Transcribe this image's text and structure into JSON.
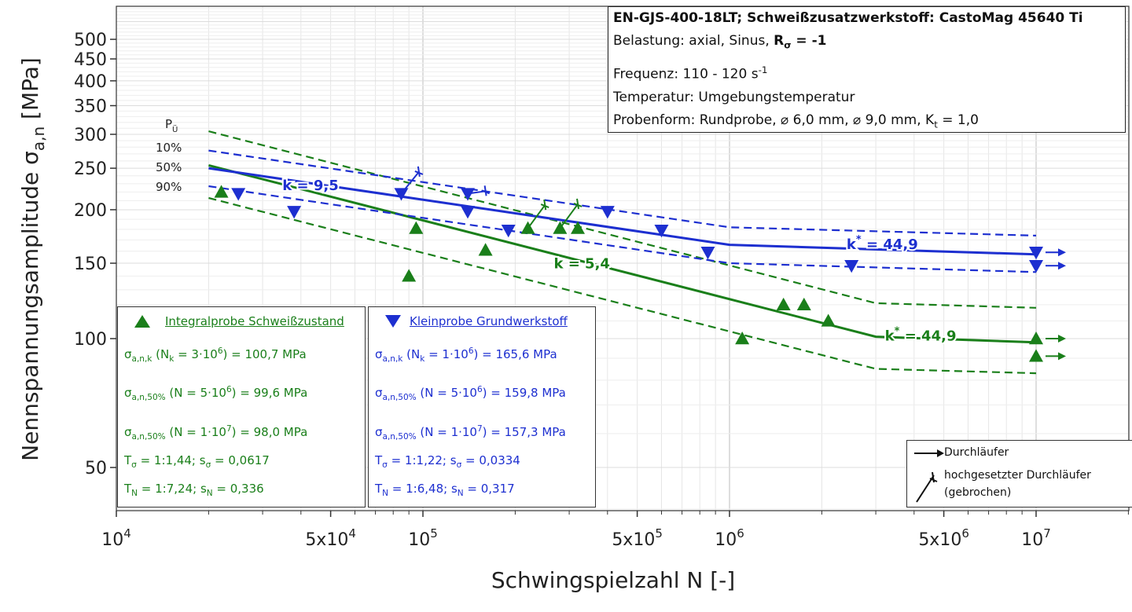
{
  "chart_data": {
    "type": "scatter",
    "x_scale": "log",
    "y_scale": "log",
    "xlim": [
      10000,
      20000000
    ],
    "ylim": [
      40,
      600
    ],
    "grid": true,
    "xlabel": "Schwingspielzahl N  [-]",
    "ylabel_main": "Nennspannungsamplitude σ",
    "ylabel_sub": "a,n",
    "ylabel_unit": " [MPa]",
    "x_ticks": [
      {
        "value": 10000,
        "base": "10",
        "exp": "4"
      },
      {
        "value": 50000,
        "base": "5x10",
        "exp": "4"
      },
      {
        "value": 100000,
        "base": "10",
        "exp": "5"
      },
      {
        "value": 500000,
        "base": "5x10",
        "exp": "5"
      },
      {
        "value": 1000000,
        "base": "10",
        "exp": "6"
      },
      {
        "value": 5000000,
        "base": "5x10",
        "exp": "6"
      },
      {
        "value": 10000000,
        "base": "10",
        "exp": "7"
      }
    ],
    "y_ticks": [
      {
        "value": 500,
        "label": "500"
      },
      {
        "value": 450,
        "label": "450"
      },
      {
        "value": 400,
        "label": "400"
      },
      {
        "value": 350,
        "label": "350"
      },
      {
        "value": 300,
        "label": "300"
      },
      {
        "value": 250,
        "label": "250"
      },
      {
        "value": 200,
        "label": "200"
      },
      {
        "value": 150,
        "label": "150"
      },
      {
        "value": 100,
        "label": "100"
      },
      {
        "value": 50,
        "label": "50"
      }
    ],
    "pu_labels": {
      "title": "P",
      "title_sub": "Ü",
      "p10": "10%",
      "p50": "50%",
      "p90": "90%"
    },
    "series": [
      {
        "name": "Integralprobe Schweißzustand",
        "color": "#1a7f1a",
        "marker": "triangle-up",
        "points": [
          {
            "x": 22000,
            "y": 220
          },
          {
            "x": 90000,
            "y": 140
          },
          {
            "x": 95000,
            "y": 181
          },
          {
            "x": 160000,
            "y": 161
          },
          {
            "x": 220000,
            "y": 181
          },
          {
            "x": 280000,
            "y": 181
          },
          {
            "x": 320000,
            "y": 181
          },
          {
            "x": 1100000,
            "y": 100
          },
          {
            "x": 1500000,
            "y": 120
          },
          {
            "x": 1750000,
            "y": 120
          },
          {
            "x": 2100000,
            "y": 110
          },
          {
            "x": 10000000,
            "y": 100,
            "runout": true
          },
          {
            "x": 10000000,
            "y": 91,
            "runout": true
          }
        ],
        "raised_runouts": [
          {
            "x": 220000,
            "y": 181,
            "x2": 250000,
            "y2": 205
          },
          {
            "x": 280000,
            "y": 181,
            "x2": 320000,
            "y2": 206
          }
        ],
        "curve_50": [
          [
            20000,
            254
          ],
          [
            3000000,
            101
          ],
          [
            10000000,
            98
          ]
        ],
        "curve_10": [
          [
            20000,
            305
          ],
          [
            3000000,
            121
          ],
          [
            10000000,
            118
          ]
        ],
        "curve_90": [
          [
            20000,
            213
          ],
          [
            3000000,
            85
          ],
          [
            10000000,
            83
          ]
        ],
        "slope_label": "k = 5,4",
        "slope_label_at": [
          330000,
          146
        ],
        "knee_label": "k",
        "knee_label_sup": "*",
        "knee_label_rest": " = 44,9",
        "knee_label_at": [
          4200000,
          99
        ]
      },
      {
        "name": "Kleinprobe Grundwerkstoff",
        "color": "#1d2fd0",
        "marker": "triangle-down",
        "points": [
          {
            "x": 25000,
            "y": 218
          },
          {
            "x": 38000,
            "y": 198
          },
          {
            "x": 85000,
            "y": 218
          },
          {
            "x": 140000,
            "y": 218
          },
          {
            "x": 140000,
            "y": 198
          },
          {
            "x": 190000,
            "y": 179
          },
          {
            "x": 400000,
            "y": 198
          },
          {
            "x": 600000,
            "y": 179
          },
          {
            "x": 850000,
            "y": 159
          },
          {
            "x": 2500000,
            "y": 148
          },
          {
            "x": 10000000,
            "y": 159,
            "runout": true
          },
          {
            "x": 10000000,
            "y": 148,
            "runout": true
          }
        ],
        "raised_runouts": [
          {
            "x": 85000,
            "y": 218,
            "x2": 97000,
            "y2": 245
          },
          {
            "x": 140000,
            "y": 218,
            "x2": 160000,
            "y2": 221
          }
        ],
        "curve_50": [
          [
            20000,
            250
          ],
          [
            1000000,
            165.6
          ],
          [
            10000000,
            157.3
          ]
        ],
        "curve_10": [
          [
            20000,
            275
          ],
          [
            1000000,
            182
          ],
          [
            10000000,
            174
          ]
        ],
        "curve_90": [
          [
            20000,
            227
          ],
          [
            1000000,
            150
          ],
          [
            10000000,
            143
          ]
        ],
        "slope_label": "k = 9,5",
        "slope_label_at": [
          43000,
          222
        ],
        "knee_label": "k",
        "knee_label_sup": "*",
        "knee_label_rest": " = 44,9",
        "knee_label_at": [
          3150000,
          162
        ]
      }
    ]
  },
  "info": {
    "line1": "EN-GJS-400-18LT; Schweißzusatzwerkstoff: CastoMag 45640 Ti",
    "line2_a": "Belastung: axial, Sinus, ",
    "line2_b": "R",
    "line2_sub": "σ",
    "line2_c": " = -1",
    "line3_a": "Frequenz: 110 - 120 s",
    "line3_sup": "-1",
    "line4": "Temperatur: Umgebungstemperatur",
    "line5_a": "Probenform: Rundprobe, ⌀ 6,0 mm, ⌀ 9,0 mm, K",
    "line5_sub": "t",
    "line5_c": " = 1,0"
  },
  "green_box": {
    "title": "Integralprobe Schweißzustand",
    "r1_sub": "a,n,k",
    "r1_a": " (N",
    "r1_sub2": "k",
    "r1_b": " = 3·10",
    "r1_sup": "6",
    "r1_c": ") = 100,7 MPa",
    "r2_sub": "a,n,50%",
    "r2_a": " (N = 5·10",
    "r2_sup": "6",
    "r2_c": ") = 99,6 MPa",
    "r3_sub": "a,n,50%",
    "r3_a": " (N = 1·10",
    "r3_sup": "7",
    "r3_c": ") = 98,0 MPa",
    "r4_a": "T",
    "r4_sub": "σ",
    "r4_b": " = 1:1,44; s",
    "r4_sub2": "σ",
    "r4_c": " = 0,0617",
    "r5_a": "T",
    "r5_sub": "N",
    "r5_b": " = 1:7,24; s",
    "r5_sub2": "N",
    "r5_c": " = 0,336"
  },
  "blue_box": {
    "title": "Kleinprobe Grundwerkstoff",
    "r1_sub": "a,n,k",
    "r1_a": " (N",
    "r1_sub2": "k",
    "r1_b": " = 1·10",
    "r1_sup": "6",
    "r1_c": ") = 165,6 MPa",
    "r2_sub": "a,n,50%",
    "r2_a": " (N = 5·10",
    "r2_sup": "6",
    "r2_c": ") = 159,8 MPa",
    "r3_sub": "a,n,50%",
    "r3_a": " (N = 1·10",
    "r3_sup": "7",
    "r3_c": ") = 157,3 MPa",
    "r4_a": "T",
    "r4_sub": "σ",
    "r4_b": " = 1:1,22; s",
    "r4_sub2": "σ",
    "r4_c": " = 0,0334",
    "r5_a": "T",
    "r5_sub": "N",
    "r5_b": " = 1:6,48; s",
    "r5_sub2": "N",
    "r5_c": " = 0,317"
  },
  "sigma_symbol": "σ",
  "runout_legend": {
    "runout": "Durchläufer",
    "raised_line1": "hochgesetzter Durchläufer",
    "raised_line2": "(gebrochen)"
  }
}
